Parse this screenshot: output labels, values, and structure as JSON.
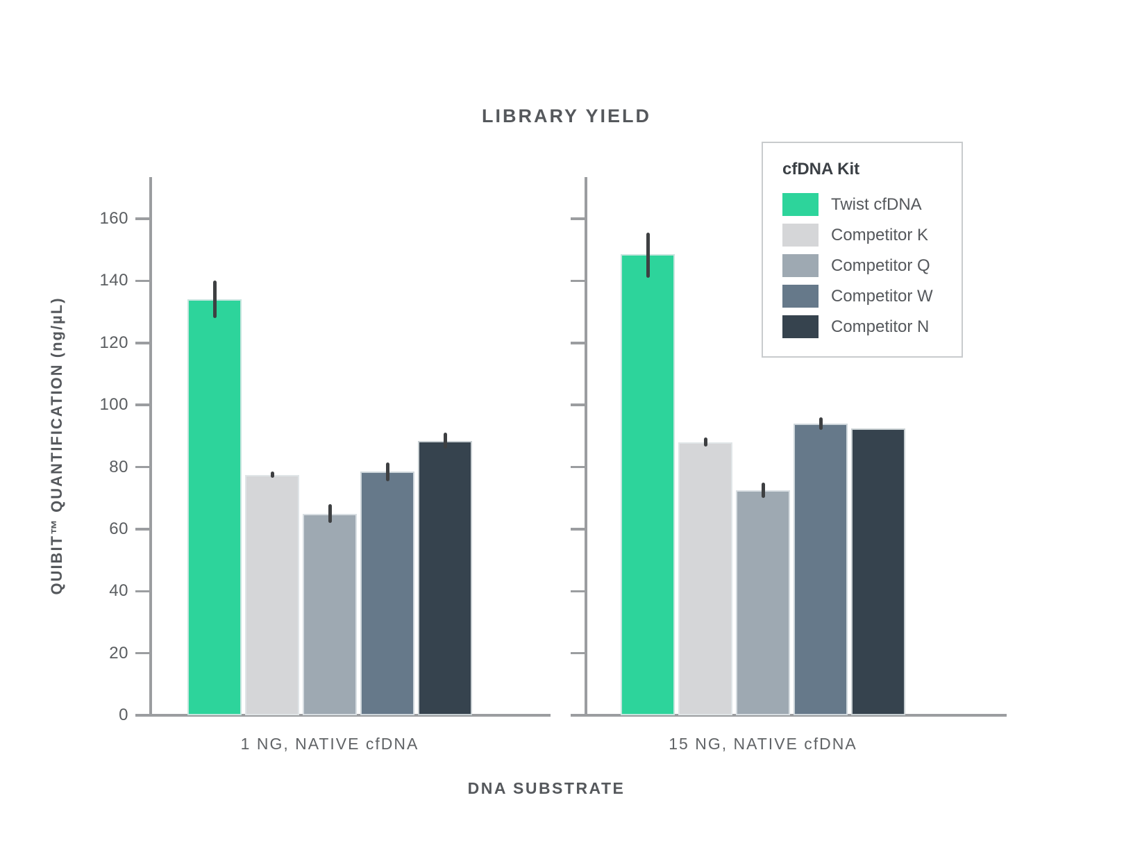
{
  "title": "LIBRARY YIELD",
  "legend": {
    "title": "cfDNA Kit",
    "items": [
      {
        "label": "Twist cfDNA",
        "color": "#2DD49B"
      },
      {
        "label": "Competitor K",
        "color": "#D5D6D8"
      },
      {
        "label": "Competitor Q",
        "color": "#9EA9B2"
      },
      {
        "label": "Competitor W",
        "color": "#66798A"
      },
      {
        "label": "Competitor N",
        "color": "#36434E"
      }
    ]
  },
  "colors": {
    "axis": "#9B9DA0",
    "error_bar": "#3E4042",
    "title_text": "#55585C"
  },
  "chart_data": {
    "type": "bar",
    "title": "LIBRARY YIELD",
    "xlabel": "DNA SUBSTRATE",
    "ylabel": "QUIBIT™ QUANTIFICATION (ng/µL)",
    "ylim": [
      0,
      173
    ],
    "yticks": [
      0,
      20,
      40,
      60,
      80,
      100,
      120,
      140,
      160
    ],
    "grid": false,
    "legend_position": "upper right",
    "legend_title": "cfDNA Kit",
    "facets": [
      {
        "category": "1 NG, NATIVE cfDNA",
        "series": [
          {
            "name": "Twist cfDNA",
            "value": 134,
            "error_low": 128,
            "error_high": 140
          },
          {
            "name": "Competitor K",
            "value": 77.5,
            "error_low": 76.5,
            "error_high": 78.5
          },
          {
            "name": "Competitor Q",
            "value": 65,
            "error_low": 62,
            "error_high": 68
          },
          {
            "name": "Competitor W",
            "value": 78.5,
            "error_low": 75.5,
            "error_high": 81.5
          },
          {
            "name": "Competitor N",
            "value": 88.5,
            "error_low": 86,
            "error_high": 91
          }
        ]
      },
      {
        "category": "15 NG, NATIVE cfDNA",
        "series": [
          {
            "name": "Twist cfDNA",
            "value": 148.5,
            "error_low": 141,
            "error_high": 155.5
          },
          {
            "name": "Competitor K",
            "value": 88,
            "error_low": 86.5,
            "error_high": 89.5
          },
          {
            "name": "Competitor Q",
            "value": 72.5,
            "error_low": 70,
            "error_high": 75
          },
          {
            "name": "Competitor W",
            "value": 94,
            "error_low": 92,
            "error_high": 96
          },
          {
            "name": "Competitor N",
            "value": 92.5,
            "error_low": null,
            "error_high": null
          }
        ]
      }
    ]
  }
}
